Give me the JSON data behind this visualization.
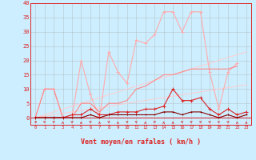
{
  "x": [
    0,
    1,
    2,
    3,
    4,
    5,
    6,
    7,
    8,
    9,
    10,
    11,
    12,
    13,
    14,
    15,
    16,
    17,
    18,
    19,
    20,
    21,
    22,
    23
  ],
  "line_pink_high": [
    0,
    10,
    10,
    0,
    0,
    20,
    8,
    0,
    23,
    16,
    12,
    27,
    26,
    29,
    37,
    37,
    30,
    37,
    37,
    16,
    3,
    16,
    19,
    null
  ],
  "line_pink_smooth": [
    0,
    10,
    10,
    0,
    0,
    5,
    5,
    2,
    5,
    5,
    6,
    10,
    11,
    13,
    15,
    15,
    16,
    17,
    17,
    17,
    17,
    17,
    18,
    null
  ],
  "line_diag1": [
    0,
    0.5,
    1,
    1.5,
    2,
    2.5,
    3,
    3.5,
    4,
    4.5,
    5,
    5.5,
    6,
    6.5,
    7,
    7.5,
    8,
    8.5,
    9,
    9.5,
    10,
    10.5,
    11,
    11.5
  ],
  "line_diag2": [
    0,
    1,
    2,
    3,
    4,
    5,
    6,
    7,
    8,
    9,
    10,
    11,
    12,
    13,
    14,
    15,
    16,
    17,
    18,
    19,
    20,
    21,
    22,
    23
  ],
  "line_red_mid": [
    0,
    0,
    0,
    0,
    1,
    1,
    3,
    1,
    1,
    2,
    2,
    2,
    3,
    3,
    4,
    10,
    6,
    6,
    7,
    3,
    1,
    3,
    1,
    2
  ],
  "line_dark_low": [
    0,
    0,
    0,
    0,
    0,
    0,
    1,
    0,
    1,
    1,
    1,
    1,
    1,
    1,
    2,
    2,
    1,
    2,
    2,
    1,
    0,
    1,
    0,
    1
  ],
  "line_zero": [
    0,
    0,
    0,
    0,
    0,
    0,
    0,
    0,
    0,
    0,
    0,
    0,
    0,
    0,
    0,
    0,
    0,
    0,
    0,
    0,
    0,
    0,
    0,
    0
  ],
  "background_color": "#cceeff",
  "grid_color": "#aaaaaa",
  "color_light_pink": "#ffaaaa",
  "color_pink": "#ff8888",
  "color_red": "#dd2222",
  "color_dark_red": "#880000",
  "color_diag": "#ffcccc",
  "xlabel": "Vent moyen/en rafales ( km/h )",
  "xlim": [
    -0.5,
    23.5
  ],
  "ylim": [
    -2.5,
    40
  ],
  "yticks": [
    0,
    5,
    10,
    15,
    20,
    25,
    30,
    35,
    40
  ],
  "xticks": [
    0,
    1,
    2,
    3,
    4,
    5,
    6,
    7,
    8,
    9,
    10,
    11,
    12,
    13,
    14,
    15,
    16,
    17,
    18,
    19,
    20,
    21,
    22,
    23
  ],
  "arrow_dirs": [
    90,
    45,
    45,
    0,
    45,
    0,
    45,
    0,
    45,
    0,
    45,
    315,
    0,
    45,
    0,
    0,
    315,
    315,
    45,
    45,
    315,
    45,
    0,
    0
  ]
}
